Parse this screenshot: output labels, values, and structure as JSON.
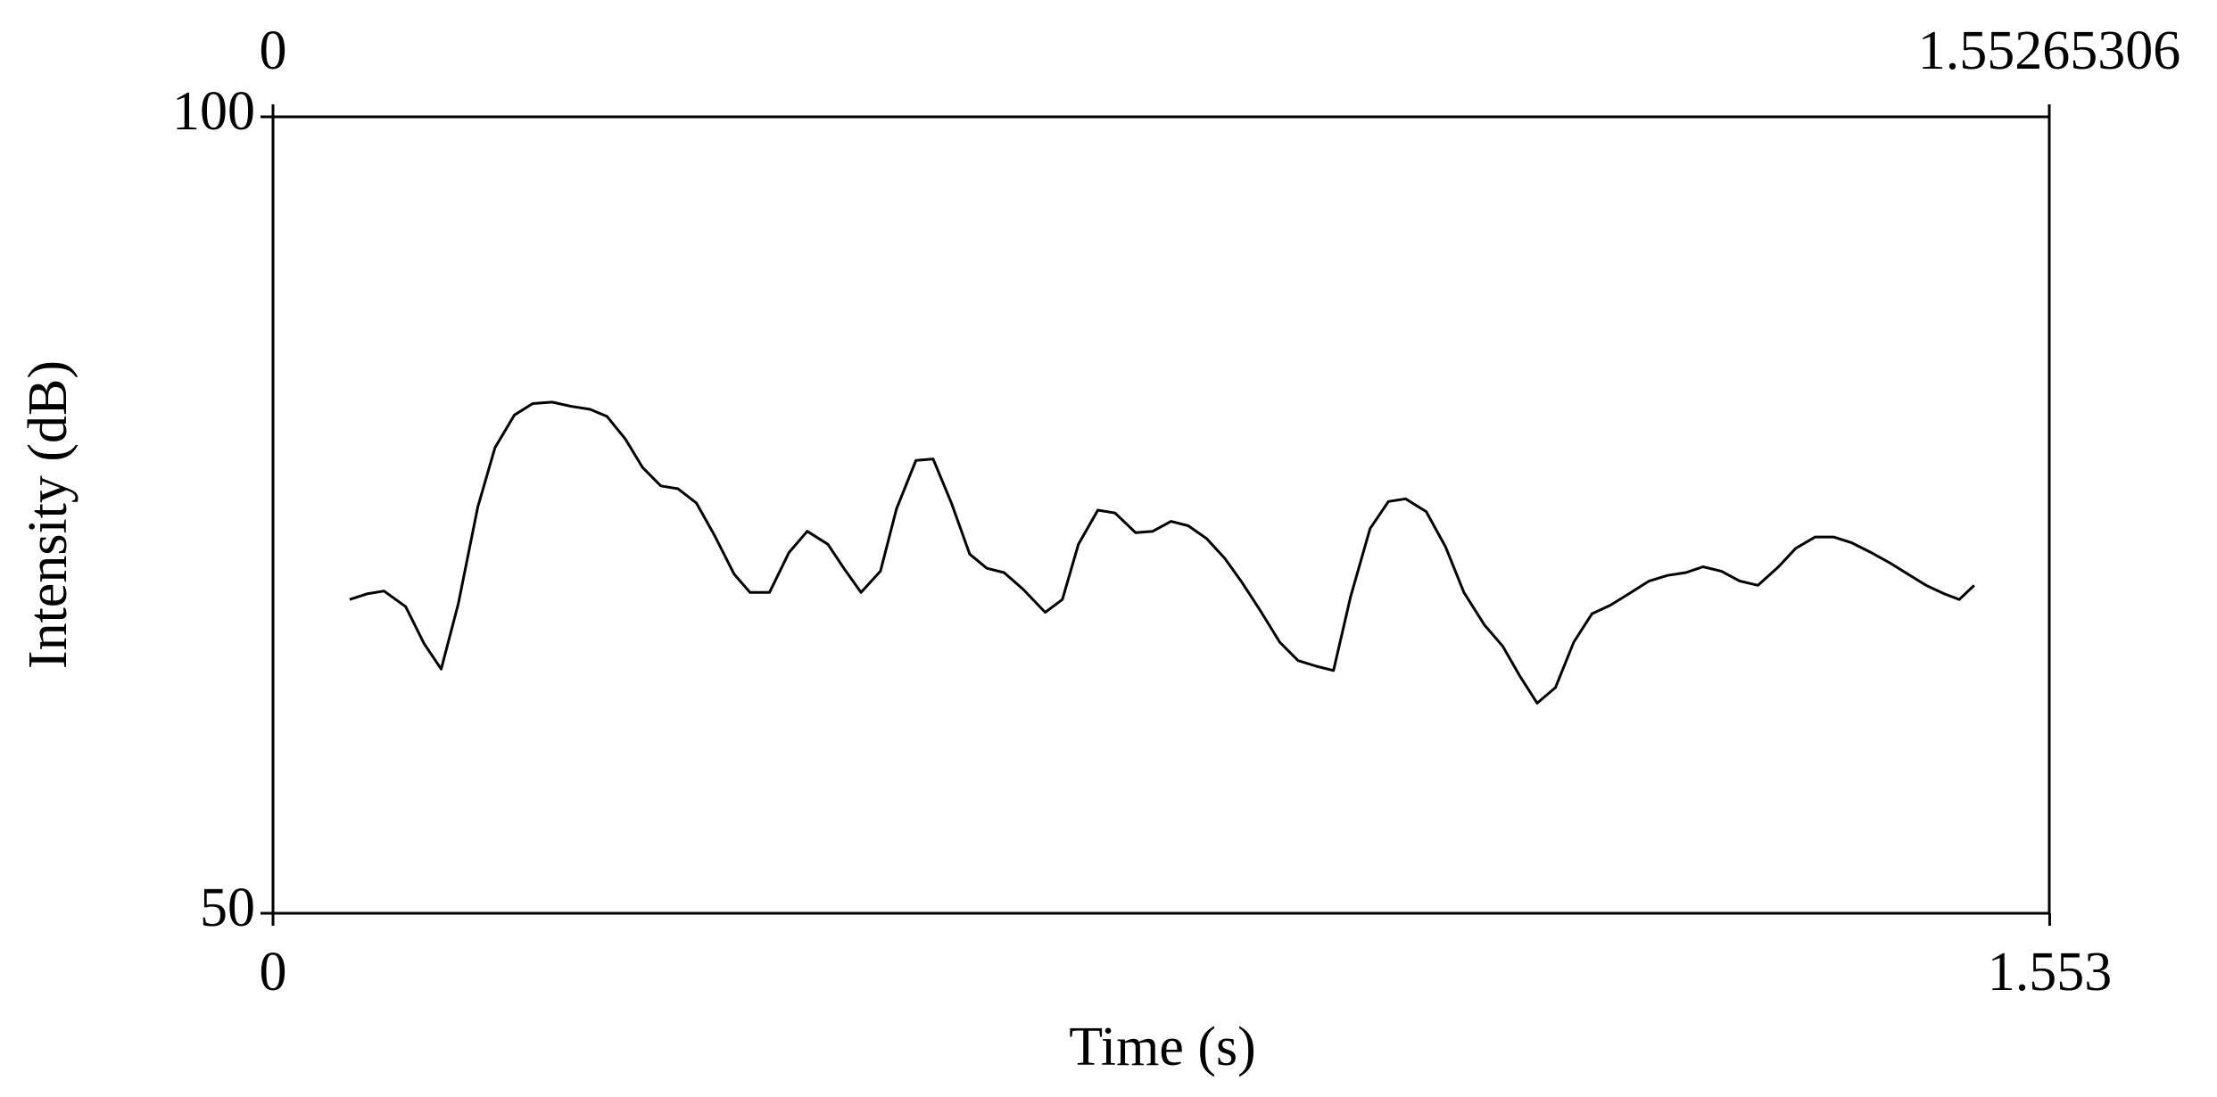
{
  "chart_data": {
    "type": "line",
    "xlabel": "Time (s)",
    "ylabel": "Intensity (dB)",
    "xlim": [
      0,
      1.55265306
    ],
    "xticks": [
      0,
      1.553
    ],
    "x2lim": [
      0,
      1.55265306
    ],
    "x2ticks": [
      0,
      1.55265306
    ],
    "ylim": [
      50,
      100
    ],
    "yticks": [
      50,
      100
    ],
    "color": "#000000",
    "x": [
      0.067,
      0.082,
      0.097,
      0.116,
      0.132,
      0.147,
      0.162,
      0.179,
      0.194,
      0.211,
      0.227,
      0.244,
      0.261,
      0.277,
      0.292,
      0.308,
      0.323,
      0.339,
      0.354,
      0.37,
      0.386,
      0.403,
      0.417,
      0.434,
      0.451,
      0.467,
      0.485,
      0.499,
      0.514,
      0.531,
      0.545,
      0.562,
      0.577,
      0.593,
      0.609,
      0.624,
      0.639,
      0.656,
      0.675,
      0.69,
      0.704,
      0.721,
      0.736,
      0.754,
      0.769,
      0.785,
      0.8,
      0.816,
      0.832,
      0.847,
      0.864,
      0.88,
      0.896,
      0.912,
      0.927,
      0.942,
      0.959,
      0.975,
      0.99,
      1.008,
      1.025,
      1.041,
      1.059,
      1.075,
      1.09,
      1.105,
      1.121,
      1.137,
      1.153,
      1.169,
      1.185,
      1.203,
      1.219,
      1.235,
      1.25,
      1.266,
      1.282,
      1.298,
      1.316,
      1.331,
      1.348,
      1.364,
      1.38,
      1.397,
      1.413,
      1.429,
      1.445,
      1.461,
      1.474,
      1.487
    ],
    "values": [
      69.7,
      70.05,
      70.23,
      69.25,
      66.93,
      65.33,
      69.43,
      75.49,
      79.23,
      81.28,
      82.0,
      82.09,
      81.82,
      81.64,
      81.19,
      79.77,
      77.99,
      76.83,
      76.65,
      75.76,
      73.71,
      71.3,
      70.14,
      70.14,
      72.64,
      73.98,
      73.17,
      71.66,
      70.14,
      71.48,
      75.4,
      78.43,
      78.52,
      75.76,
      72.55,
      71.66,
      71.39,
      70.32,
      68.89,
      69.7,
      73.17,
      75.31,
      75.13,
      73.89,
      73.98,
      74.6,
      74.33,
      73.53,
      72.28,
      70.77,
      68.89,
      67.02,
      65.86,
      65.51,
      65.24,
      69.88,
      74.15,
      75.85,
      76.02,
      75.22,
      72.99,
      70.14,
      68.09,
      66.76,
      64.88,
      63.19,
      64.17,
      67.02,
      68.81,
      69.34,
      70.05,
      70.86,
      71.21,
      71.39,
      71.75,
      71.48,
      70.86,
      70.59,
      71.75,
      72.91,
      73.62,
      73.62,
      73.26,
      72.64,
      72.01,
      71.3,
      70.59,
      70.05,
      69.7,
      70.59
    ]
  }
}
